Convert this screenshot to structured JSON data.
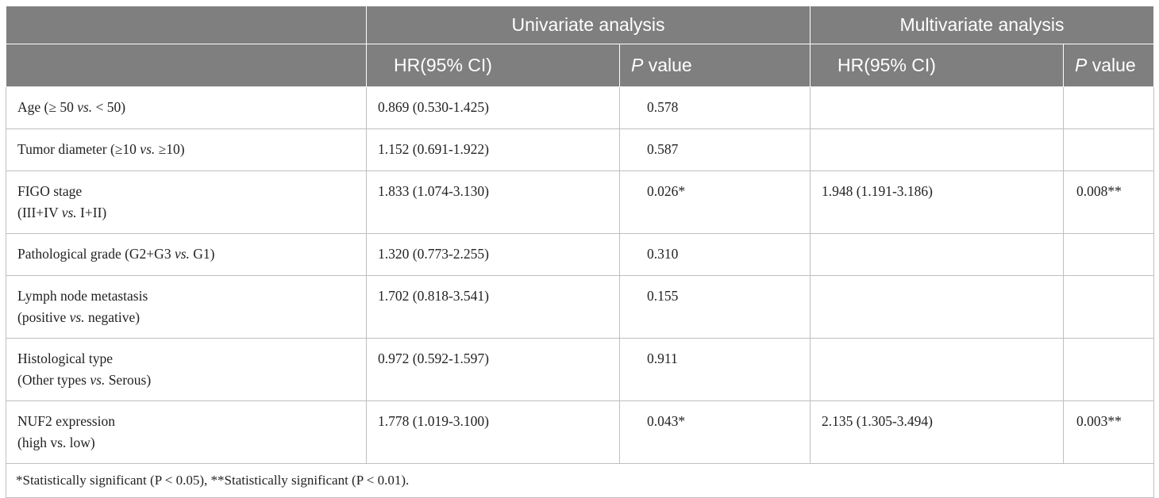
{
  "header": {
    "univariate": "Univariate analysis",
    "multivariate": "Multivariate analysis",
    "hr": "HR(95% CI)",
    "p_italic": "P",
    "p_rest": " value"
  },
  "rows": [
    {
      "line1": "Age (≥ 50 ",
      "vs": "vs.",
      "line1_end": " < 50)",
      "line2": "",
      "uni_hr": "0.869 (0.530-1.425)",
      "uni_p": "0.578",
      "multi_hr": "",
      "multi_p": ""
    },
    {
      "line1": "Tumor diameter (≥10 ",
      "vs": "vs.",
      "line1_end": " ≥10)",
      "line2": "",
      "uni_hr": "1.152 (0.691-1.922)",
      "uni_p": "0.587",
      "multi_hr": "",
      "multi_p": ""
    },
    {
      "line1": "FIGO stage",
      "line2_start": "(III+IV ",
      "vs": "vs.",
      "line2_end": " I+II)",
      "uni_hr": "1.833 (1.074-3.130)",
      "uni_p": "0.026*",
      "multi_hr": "1.948 (1.191-3.186)",
      "multi_p": "0.008**"
    },
    {
      "line1": "Pathological grade (G2+G3 ",
      "vs": "vs.",
      "line1_end": " G1)",
      "line2": "",
      "uni_hr": "1.320 (0.773-2.255)",
      "uni_p": "0.310",
      "multi_hr": "",
      "multi_p": ""
    },
    {
      "line1": "Lymph node metastasis",
      "line2_start": "(positive ",
      "vs": "vs.",
      "line2_end": " negative)",
      "uni_hr": "1.702 (0.818-3.541)",
      "uni_p": "0.155",
      "multi_hr": "",
      "multi_p": ""
    },
    {
      "line1": "Histological type",
      "line2_start": "(Other types ",
      "vs": "vs.",
      "line2_end": " Serous)",
      "uni_hr": "0.972 (0.592-1.597)",
      "uni_p": "0.911",
      "multi_hr": "",
      "multi_p": ""
    },
    {
      "line1": "NUF2 expression",
      "line2": "(high vs. low)",
      "uni_hr": "1.778 (1.019-3.100)",
      "uni_p": "0.043*",
      "multi_hr": "2.135 (1.305-3.494)",
      "multi_p": "0.003**"
    }
  ],
  "footnote": "*Statistically significant (P < 0.05), **Statistically significant (P < 0.01)."
}
